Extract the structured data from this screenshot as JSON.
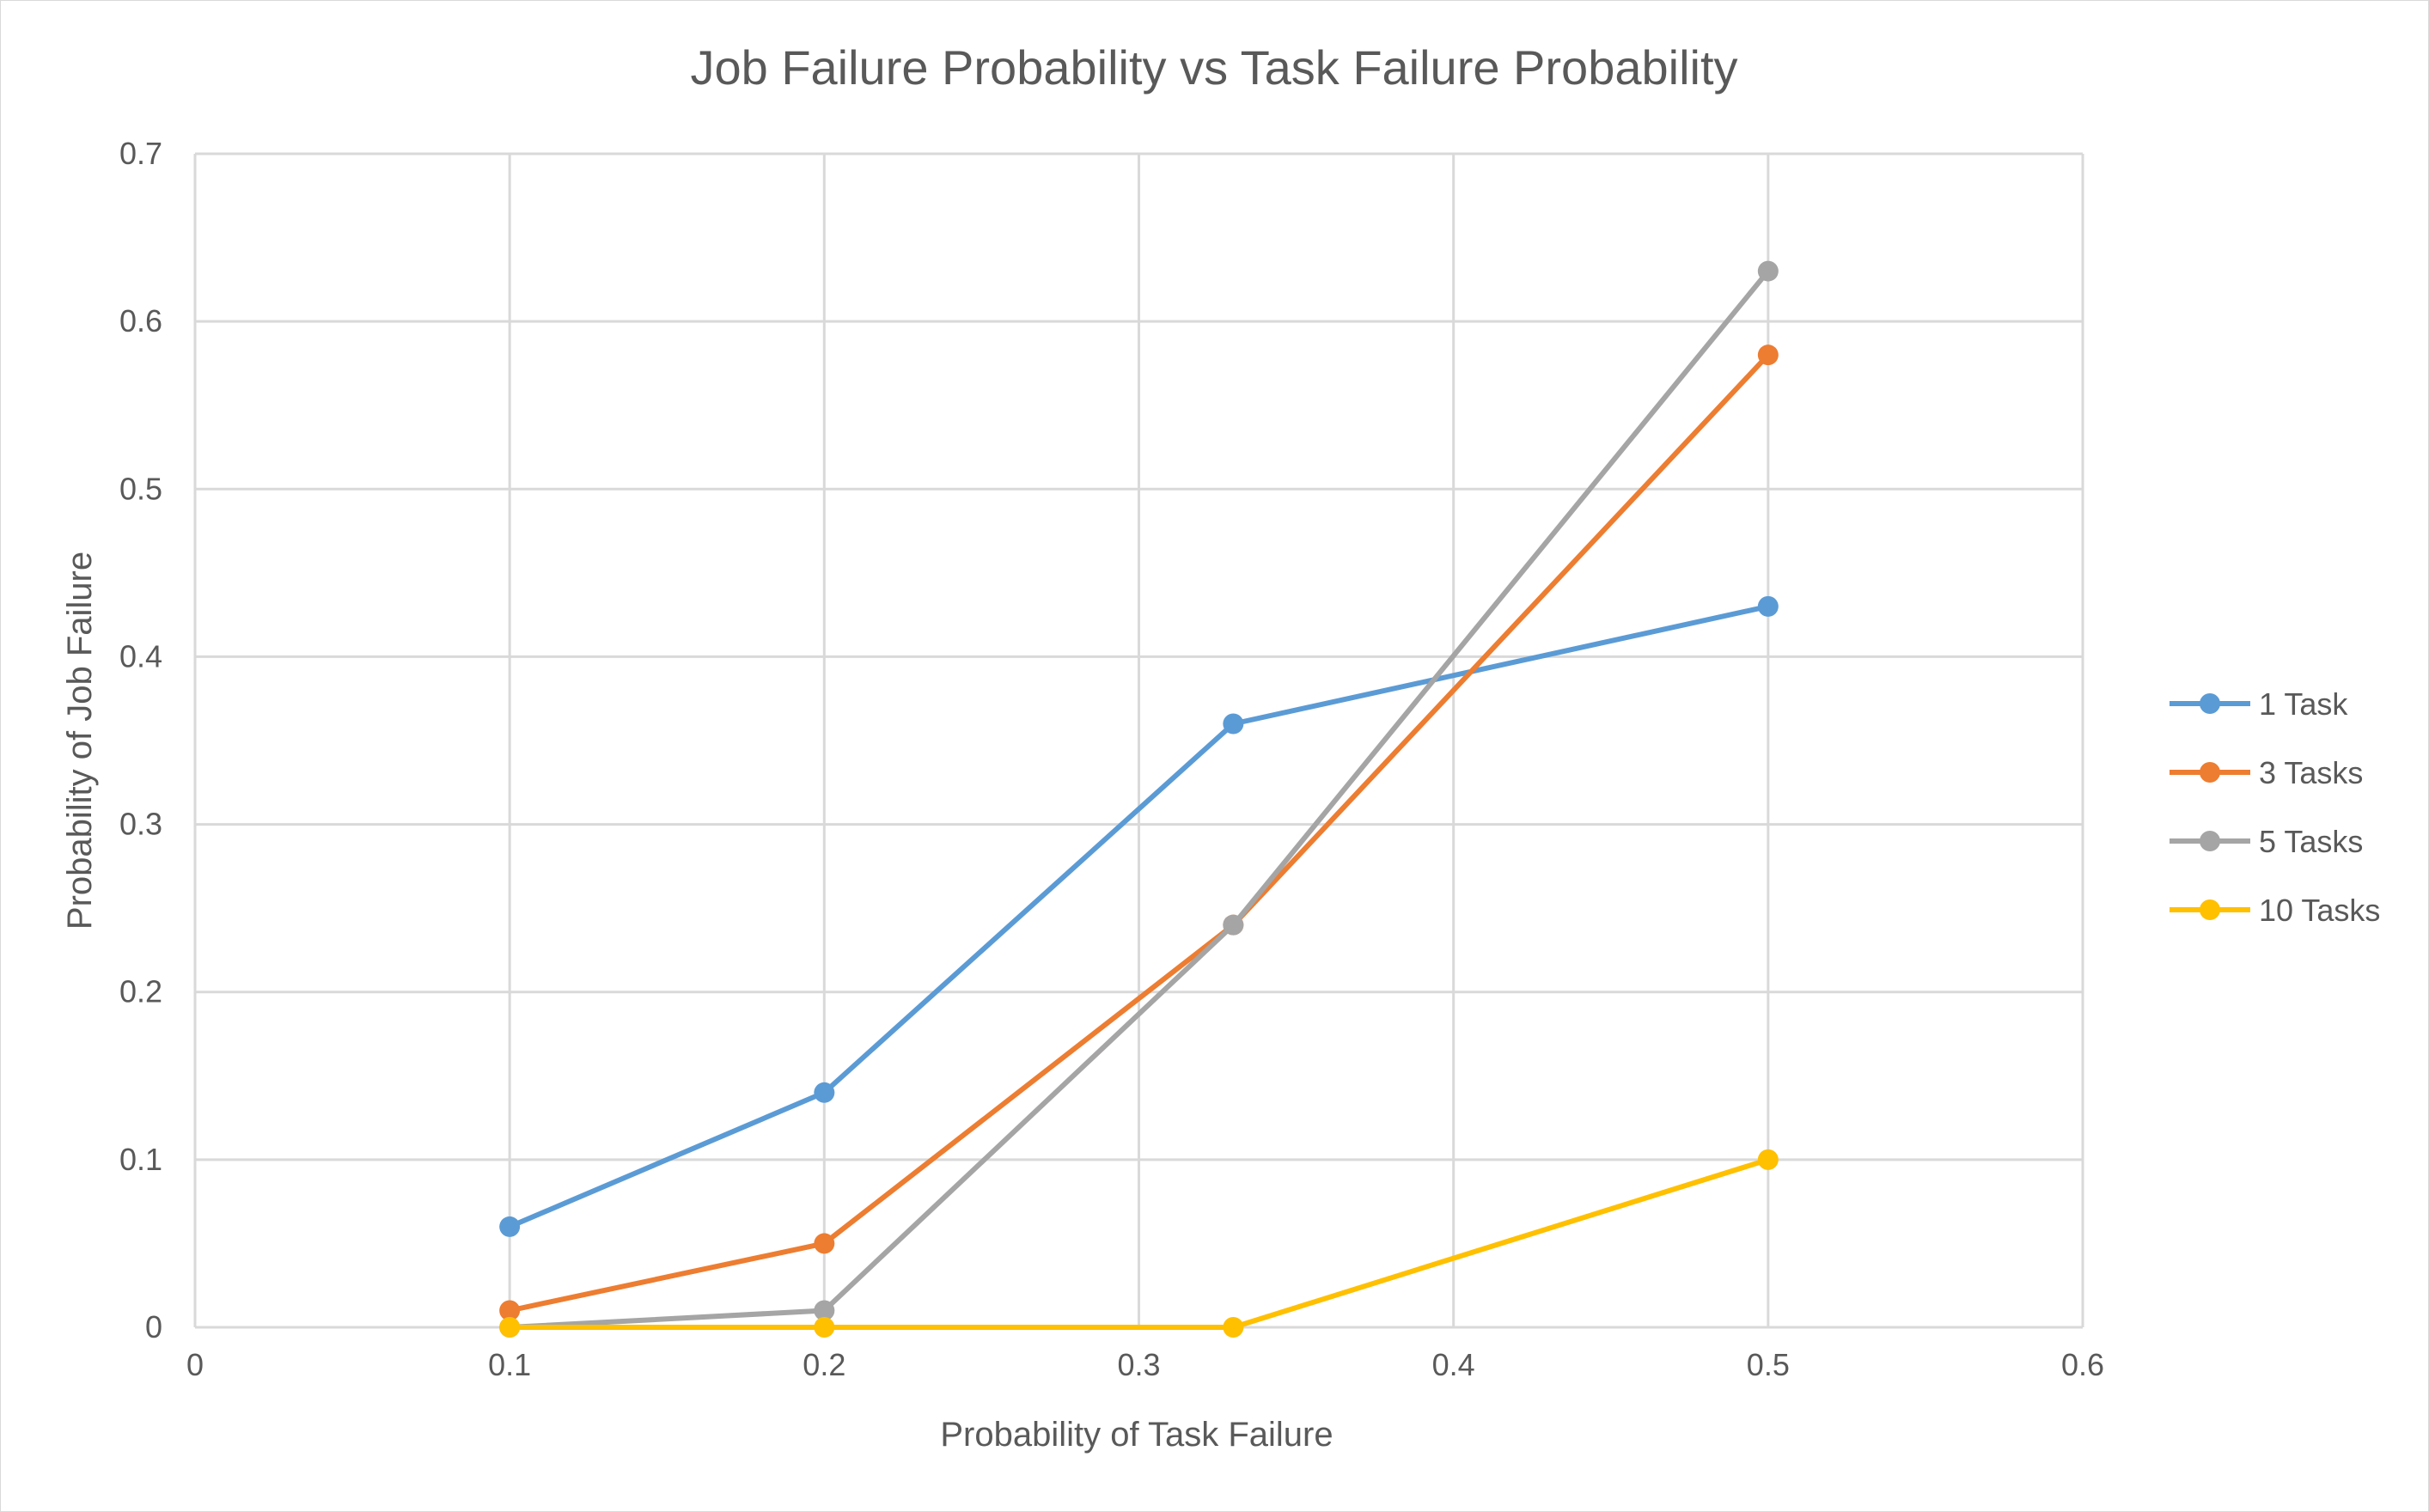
{
  "chart_data": {
    "type": "scatter",
    "title": "Job Failure Probability vs Task Failure Probability",
    "xlabel": "Probability of Task Failure",
    "ylabel": "Probability of Job Failure",
    "xlim": [
      0,
      0.6
    ],
    "ylim": [
      0,
      0.7
    ],
    "x_ticks": [
      "0",
      "0.1",
      "0.2",
      "0.3",
      "0.4",
      "0.5",
      "0.6"
    ],
    "y_ticks": [
      "0",
      "0.1",
      "0.2",
      "0.3",
      "0.4",
      "0.5",
      "0.6",
      "0.7"
    ],
    "grid": true,
    "markers": true,
    "lines": "straight",
    "legend_position": "right",
    "series": [
      {
        "name": "1 Task",
        "color": "#5b9bd5",
        "x": [
          0.1,
          0.2,
          0.33,
          0.5
        ],
        "y": [
          0.06,
          0.14,
          0.36,
          0.43
        ]
      },
      {
        "name": "3 Tasks",
        "color": "#ed7d31",
        "x": [
          0.1,
          0.2,
          0.33,
          0.5
        ],
        "y": [
          0.01,
          0.05,
          0.24,
          0.58
        ]
      },
      {
        "name": "5 Tasks",
        "color": "#a5a5a5",
        "x": [
          0.1,
          0.2,
          0.33,
          0.5
        ],
        "y": [
          0.0,
          0.01,
          0.24,
          0.63
        ]
      },
      {
        "name": "10 Tasks",
        "color": "#ffc000",
        "x": [
          0.1,
          0.2,
          0.33,
          0.5
        ],
        "y": [
          0.0,
          0.0,
          0.0,
          0.1
        ]
      }
    ]
  }
}
